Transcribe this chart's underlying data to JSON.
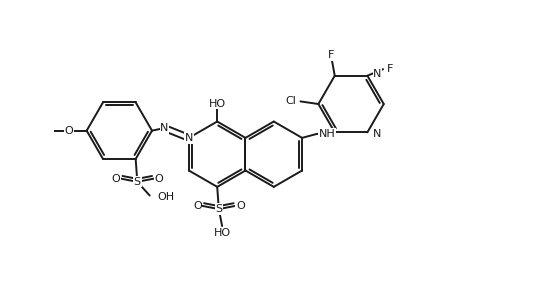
{
  "bg": "#ffffff",
  "lc": "#1a1a1a",
  "lw": 1.4,
  "fs": 8.0,
  "figsize": [
    5.49,
    2.94
  ],
  "dpi": 100,
  "xlim": [
    0.0,
    13.5
  ],
  "ylim": [
    -1.5,
    7.5
  ]
}
